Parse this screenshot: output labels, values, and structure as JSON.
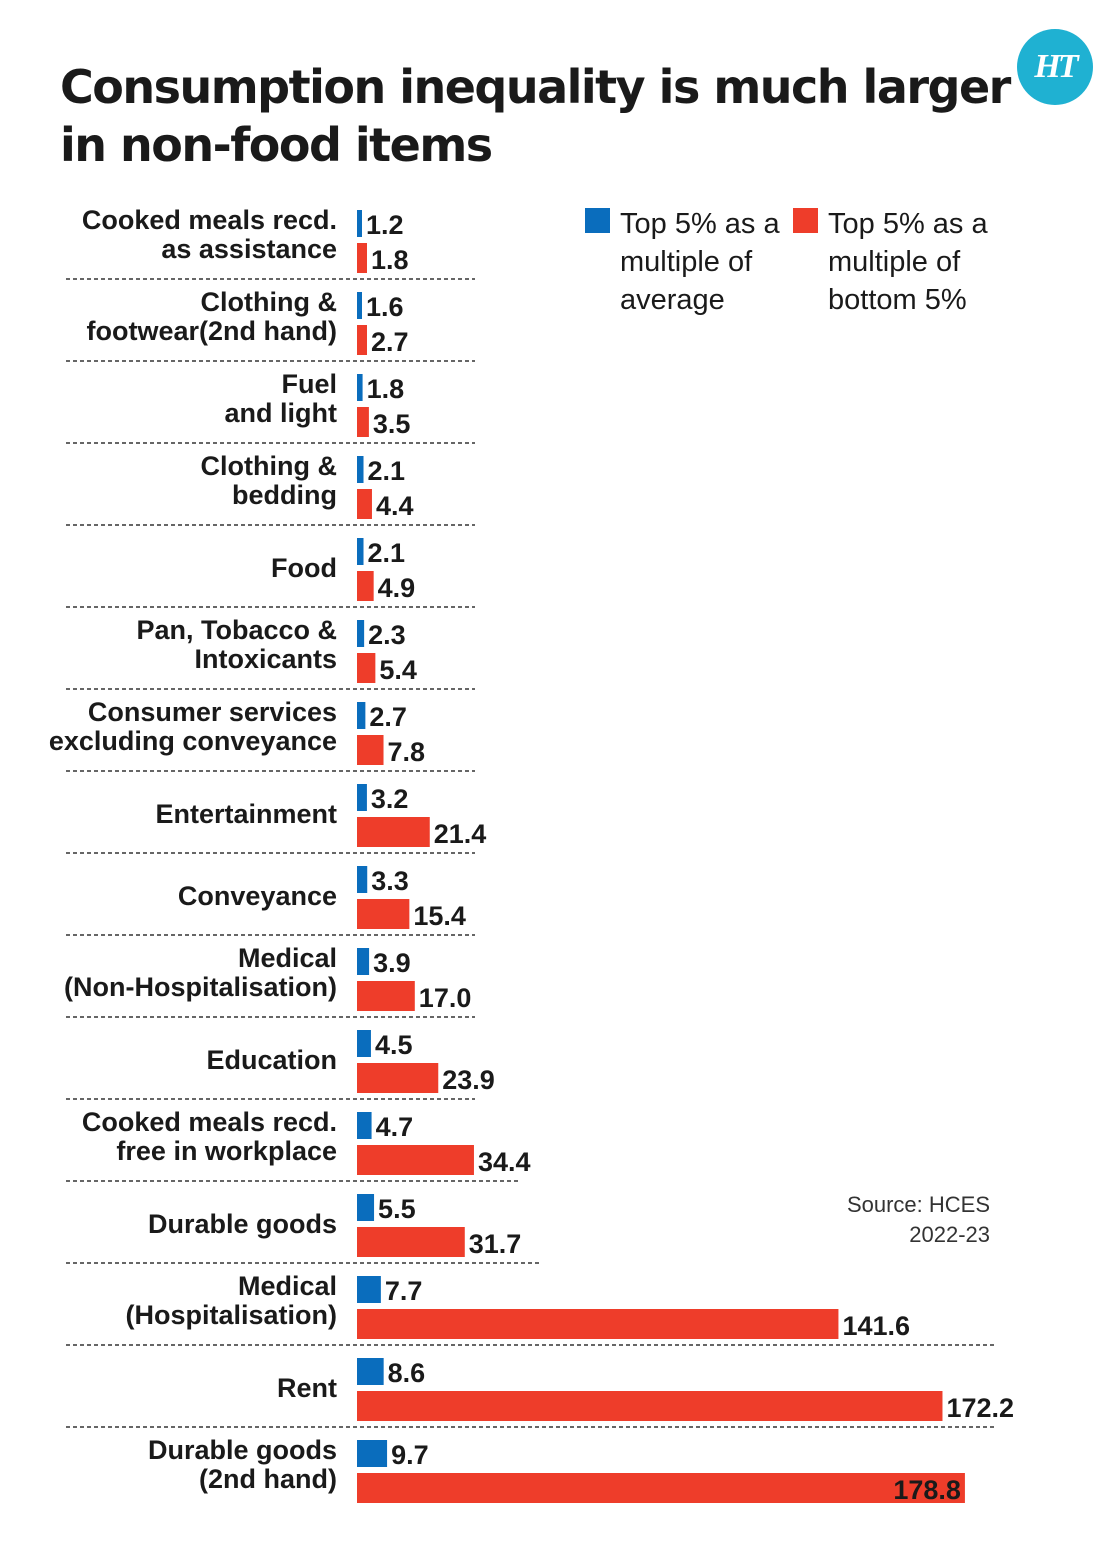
{
  "title": "Consumption inequality is much larger in non-food items",
  "logo_text": "HT",
  "source": "Source: HCES\n2022-23",
  "colors": {
    "series_avg": "#0a6dbd",
    "series_bottom": "#ee3d2a",
    "logo": "#1fb1d2"
  },
  "chart_data": {
    "type": "bar",
    "orientation": "horizontal",
    "grid": false,
    "legend_position": "top-right",
    "categories": [
      "Cooked meals recd.\nas assistance",
      "Clothing &\nfootwear(2nd hand)",
      "Fuel\nand light",
      "Clothing &\nbedding",
      "Food",
      "Pan, Tobacco &\nIntoxicants",
      "Consumer services\nexcluding conveyance",
      "Entertainment",
      "Conveyance",
      "Medical\n(Non-Hospitalisation)",
      "Education",
      "Cooked meals recd.\nfree in workplace",
      "Durable goods",
      "Medical\n(Hospitalisation)",
      "Rent",
      "Durable goods\n(2nd hand)"
    ],
    "series": [
      {
        "name": "Top 5% as a multiple of average",
        "legend_text": "Top 5% as a\nmultiple of\naverage",
        "color": "#0a6dbd",
        "values": [
          1.2,
          1.6,
          1.8,
          2.1,
          2.1,
          2.3,
          2.7,
          3.2,
          3.3,
          3.9,
          4.5,
          4.7,
          5.5,
          7.7,
          8.6,
          9.7
        ],
        "labels": [
          "1.2",
          "1.6",
          "1.8",
          "2.1",
          "2.1",
          "2.3",
          "2.7",
          "3.2",
          "3.3",
          "3.9",
          "4.5",
          "4.7",
          "5.5",
          "7.7",
          "8.6",
          "9.7"
        ]
      },
      {
        "name": "Top 5% as a multiple of bottom 5%",
        "legend_text": "Top 5% as a\nmultiple of\nbottom 5%",
        "color": "#ee3d2a",
        "values": [
          1.8,
          2.7,
          3.5,
          4.4,
          4.9,
          5.4,
          7.8,
          21.4,
          15.4,
          17.0,
          23.9,
          34.4,
          31.7,
          141.6,
          172.2,
          178.8
        ],
        "labels": [
          "1.8",
          "2.7",
          "3.5",
          "4.4",
          "4.9",
          "5.4",
          "7.8",
          "21.4",
          "15.4",
          "17.0",
          "23.9",
          "34.4",
          "31.7",
          "141.6",
          "172.2",
          "178.8"
        ]
      }
    ]
  }
}
